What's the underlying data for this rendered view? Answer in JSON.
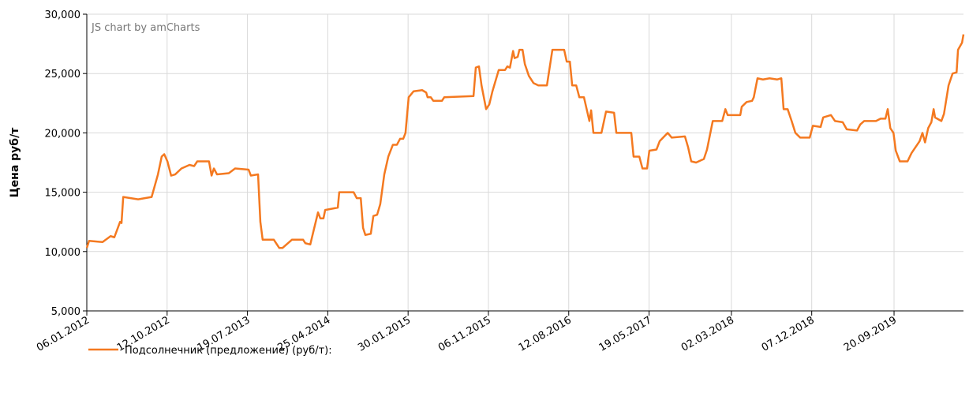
{
  "chart_data": {
    "type": "line",
    "credit": "JS chart by amCharts",
    "ylabel": "Цена руб/т",
    "ylim": [
      5000,
      30000
    ],
    "yticks": [
      {
        "value": 5000,
        "label": "5,000"
      },
      {
        "value": 10000,
        "label": "10,000"
      },
      {
        "value": 15000,
        "label": "15,000"
      },
      {
        "value": 20000,
        "label": "20,000"
      },
      {
        "value": 25000,
        "label": "25,000"
      },
      {
        "value": 30000,
        "label": "30,000"
      }
    ],
    "xlim": [
      "2012-01-06",
      "2020-05-19"
    ],
    "xticks": [
      {
        "value": "2012-01-06",
        "label": "06.01.2012"
      },
      {
        "value": "2012-10-12",
        "label": "12.10.2012"
      },
      {
        "value": "2013-07-19",
        "label": "19.07.2013"
      },
      {
        "value": "2014-04-25",
        "label": "25.04.2014"
      },
      {
        "value": "2015-01-30",
        "label": "30.01.2015"
      },
      {
        "value": "2015-11-06",
        "label": "06.11.2015"
      },
      {
        "value": "2016-08-12",
        "label": "12.08.2016"
      },
      {
        "value": "2017-05-19",
        "label": "19.05.2017"
      },
      {
        "value": "2018-03-02",
        "label": "02.03.2018"
      },
      {
        "value": "2018-12-07",
        "label": "07.12.2018"
      },
      {
        "value": "2019-09-20",
        "label": "20.09.2019"
      }
    ],
    "grid": true,
    "legend": "bottom-left",
    "x": [
      "2012-01-06",
      "2012-01-14",
      "2012-03-01",
      "2012-03-29",
      "2012-04-11",
      "2012-05-01",
      "2012-05-06",
      "2012-05-12",
      "2012-07-03",
      "2012-08-19",
      "2012-09-10",
      "2012-09-23",
      "2012-10-02",
      "2012-10-13",
      "2012-10-26",
      "2012-11-09",
      "2012-12-01",
      "2012-12-29",
      "2013-01-14",
      "2013-01-25",
      "2013-03-07",
      "2013-03-16",
      "2013-03-24",
      "2013-04-04",
      "2013-05-15",
      "2013-06-06",
      "2013-07-23",
      "2013-07-31",
      "2013-08-25",
      "2013-09-02",
      "2013-09-10",
      "2013-10-19",
      "2013-11-07",
      "2013-11-18",
      "2013-12-21",
      "2014-01-29",
      "2014-02-06",
      "2014-02-23",
      "2014-03-06",
      "2014-03-22",
      "2014-03-30",
      "2014-04-10",
      "2014-04-16",
      "2014-05-30",
      "2014-06-04",
      "2014-07-24",
      "2014-08-04",
      "2014-08-18",
      "2014-08-26",
      "2014-09-03",
      "2014-09-22",
      "2014-10-01",
      "2014-10-14",
      "2014-10-25",
      "2014-11-08",
      "2014-11-22",
      "2014-12-08",
      "2014-12-22",
      "2015-01-02",
      "2015-01-13",
      "2015-01-21",
      "2015-02-01",
      "2015-02-18",
      "2015-03-20",
      "2015-04-03",
      "2015-04-08",
      "2015-04-19",
      "2015-04-28",
      "2015-05-28",
      "2015-06-05",
      "2015-09-15",
      "2015-09-23",
      "2015-10-04",
      "2015-10-13",
      "2015-10-29",
      "2015-11-09",
      "2015-11-20",
      "2015-12-12",
      "2016-01-03",
      "2016-01-11",
      "2016-01-20",
      "2016-01-31",
      "2016-02-05",
      "2016-02-16",
      "2016-02-22",
      "2016-03-04",
      "2016-03-12",
      "2016-03-26",
      "2016-04-11",
      "2016-04-28",
      "2016-05-28",
      "2016-06-16",
      "2016-07-27",
      "2016-08-05",
      "2016-08-16",
      "2016-08-24",
      "2016-09-07",
      "2016-09-18",
      "2016-10-04",
      "2016-10-23",
      "2016-10-29",
      "2016-11-06",
      "2016-12-04",
      "2016-12-20",
      "2017-01-17",
      "2017-01-25",
      "2017-03-18",
      "2017-03-26",
      "2017-04-15",
      "2017-04-26",
      "2017-05-12",
      "2017-05-20",
      "2017-06-14",
      "2017-06-25",
      "2017-07-23",
      "2017-08-06",
      "2017-09-21",
      "2017-10-02",
      "2017-10-13",
      "2017-10-30",
      "2017-11-26",
      "2017-12-07",
      "2017-12-27",
      "2018-01-29",
      "2018-02-09",
      "2018-02-17",
      "2018-04-02",
      "2018-04-07",
      "2018-04-24",
      "2018-05-13",
      "2018-05-19",
      "2018-06-01",
      "2018-06-20",
      "2018-07-13",
      "2018-08-09",
      "2018-08-23",
      "2018-08-31",
      "2018-09-14",
      "2018-09-28",
      "2018-10-11",
      "2018-10-28",
      "2018-11-30",
      "2018-12-11",
      "2019-01-07",
      "2019-01-16",
      "2019-02-12",
      "2019-02-26",
      "2019-03-25",
      "2019-04-08",
      "2019-05-14",
      "2019-05-25",
      "2019-06-08",
      "2019-07-19",
      "2019-08-04",
      "2019-08-21",
      "2019-08-29",
      "2019-09-07",
      "2019-09-18",
      "2019-09-26",
      "2019-10-10",
      "2019-11-06",
      "2019-11-20",
      "2019-12-18",
      "2019-12-28",
      "2020-01-06",
      "2020-01-17",
      "2020-01-28",
      "2020-02-05",
      "2020-02-10",
      "2020-03-03",
      "2020-03-12",
      "2020-03-28",
      "2020-04-11",
      "2020-04-25",
      "2020-04-30",
      "2020-05-14",
      "2020-05-19"
    ],
    "series": [
      {
        "name": "Подсолнечник (предложение) (руб/т):",
        "color": "#f47920",
        "values": [
          10300,
          10900,
          10800,
          11300,
          11200,
          12500,
          12400,
          14600,
          14400,
          14600,
          16500,
          18000,
          18200,
          17600,
          16400,
          16500,
          17000,
          17300,
          17200,
          17600,
          17600,
          16400,
          17000,
          16500,
          16600,
          17000,
          16900,
          16400,
          16500,
          12500,
          11000,
          11000,
          10300,
          10300,
          11000,
          11000,
          10700,
          10600,
          11700,
          13300,
          12800,
          12800,
          13500,
          13700,
          15000,
          15000,
          14500,
          14500,
          12000,
          11400,
          11500,
          13000,
          13100,
          14000,
          16500,
          18000,
          19000,
          19000,
          19500,
          19500,
          20000,
          23000,
          23500,
          23600,
          23400,
          23000,
          23000,
          22700,
          22700,
          23000,
          23100,
          25500,
          25600,
          24000,
          22000,
          22400,
          23500,
          25300,
          25300,
          25600,
          25500,
          26900,
          26300,
          26400,
          27000,
          27000,
          25800,
          24800,
          24200,
          24000,
          24000,
          27000,
          27000,
          26000,
          26000,
          24000,
          24000,
          23000,
          23000,
          21000,
          21900,
          20000,
          20000,
          21800,
          21700,
          20000,
          20000,
          18000,
          18000,
          17000,
          17000,
          18500,
          18600,
          19300,
          20000,
          19600,
          19700,
          18800,
          17600,
          17500,
          17800,
          18600,
          21000,
          21000,
          22000,
          21500,
          21500,
          22200,
          22600,
          22700,
          23000,
          24600,
          24500,
          24600,
          24500,
          24600,
          22000,
          22000,
          21000,
          20000,
          19600,
          19600,
          20600,
          20500,
          21300,
          21500,
          21000,
          20900,
          20300,
          20200,
          20700,
          21000,
          21000,
          21200,
          21200,
          22000,
          20400,
          20000,
          18500,
          17600,
          17600,
          18300,
          19300,
          20000,
          19200,
          20400,
          20900,
          22000,
          21300,
          21000,
          21600,
          24000,
          25000,
          25100,
          27000,
          27600,
          28300
        ]
      }
    ]
  }
}
